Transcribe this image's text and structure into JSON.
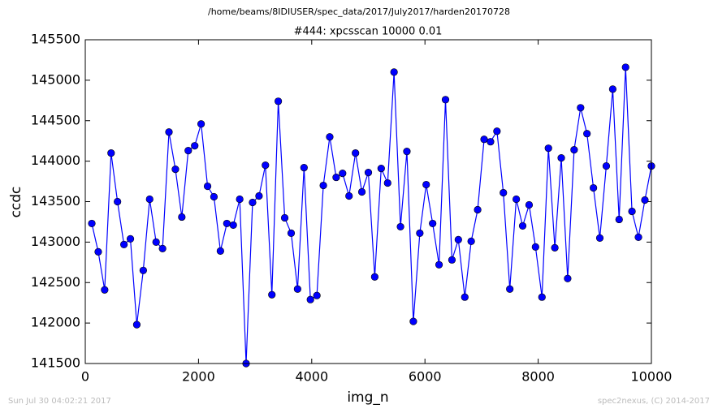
{
  "chart_data": {
    "type": "line",
    "header": "/home/beams/8IDIUSER/spec_data/2017/July2017/harden20170728",
    "title": "#444: xpcsscan 10000 0.01",
    "x_label": "img_n",
    "y_label": "ccdc",
    "footer_left": "Sun Jul 30 04:02:21 2017",
    "footer_right": "spec2nexus, (C) 2014-2017",
    "x": [
      115,
      229,
      342,
      456,
      569,
      683,
      797,
      910,
      1024,
      1137,
      1251,
      1365,
      1478,
      1592,
      1705,
      1819,
      1933,
      2046,
      2160,
      2273,
      2387,
      2501,
      2614,
      2728,
      2841,
      2955,
      3069,
      3182,
      3296,
      3409,
      3523,
      3637,
      3750,
      3864,
      3977,
      4091,
      4205,
      4318,
      4432,
      4545,
      4659,
      4773,
      4886,
      5000,
      5113,
      5227,
      5341,
      5454,
      5568,
      5681,
      5795,
      5909,
      6022,
      6136,
      6249,
      6363,
      6477,
      6590,
      6704,
      6817,
      6931,
      7045,
      7158,
      7272,
      7385,
      7499,
      7613,
      7726,
      7840,
      7953,
      8067,
      8181,
      8294,
      8408,
      8521,
      8635,
      8749,
      8862,
      8976,
      9089,
      9203,
      9317,
      9430,
      9544,
      9657,
      9771,
      9885,
      10000
    ],
    "series": [
      {
        "color": "#0000ff",
        "values": [
          143230,
          142880,
          142410,
          144100,
          143500,
          142970,
          143040,
          141980,
          142650,
          143530,
          143000,
          142920,
          144360,
          143900,
          143310,
          144130,
          144190,
          144460,
          143690,
          143560,
          142890,
          143230,
          143210,
          143530,
          141500,
          143490,
          143570,
          143950,
          142350,
          144740,
          143300,
          143110,
          142420,
          143920,
          142290,
          142340,
          143700,
          144300,
          143800,
          143850,
          143570,
          144100,
          143620,
          143860,
          142570,
          143910,
          143730,
          145100,
          143190,
          144120,
          142020,
          143110,
          143710,
          143230,
          142720,
          144760,
          142780,
          143030,
          142320,
          143010,
          143400,
          144270,
          144240,
          144370,
          143610,
          142420,
          143530,
          143200,
          143460,
          142940,
          142320,
          144160,
          142930,
          144040,
          142550,
          144140,
          144660,
          144340,
          143670,
          143050,
          143940,
          144890,
          143280,
          145160,
          143380,
          143060,
          143520,
          143940
        ]
      }
    ],
    "xlim": [
      0,
      10000
    ],
    "xticks": [
      0,
      2000,
      4000,
      6000,
      8000,
      10000
    ],
    "ylim": [
      141500,
      145500
    ],
    "yticks": [
      141500,
      142000,
      142500,
      143000,
      143500,
      144000,
      144500,
      145000,
      145500
    ],
    "grid": false
  }
}
